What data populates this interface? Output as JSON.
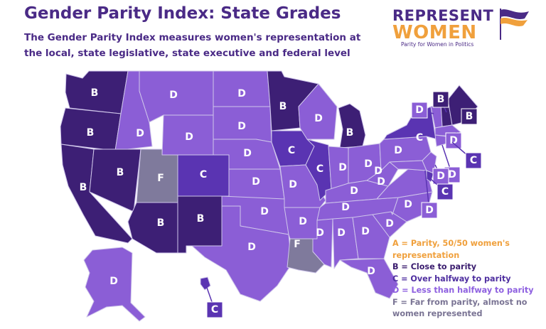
{
  "title": "Gender Parity Index: State Grades",
  "subtitle": "The Gender Parity Index measures women's representation at the local, state legislative, state executive and federal level",
  "logo": {
    "line1": "REPRESENT",
    "line2": "WOMEN",
    "tagline": "Parity for Women in Politics"
  },
  "colors": {
    "A": "#f0a03c",
    "B": "#3d1f75",
    "C": "#5a34b2",
    "D": "#8b5ed6",
    "F": "#7f7a9c",
    "border": "#cfc6ea",
    "box_stroke": "#ffffff"
  },
  "legend": [
    {
      "grade": "A",
      "text": "A = Parity, 50/50 women's representation"
    },
    {
      "grade": "B",
      "text": "B = Close to parity"
    },
    {
      "grade": "C",
      "text": "C = Over halfway to parity"
    },
    {
      "grade": "D",
      "text": "D = Less than halfway to parity"
    },
    {
      "grade": "F",
      "text": "F = Far from parity, almost no women represented"
    }
  ],
  "states": [
    {
      "state": "WA",
      "grade": "B"
    },
    {
      "state": "OR",
      "grade": "B"
    },
    {
      "state": "CA",
      "grade": "B"
    },
    {
      "state": "ID",
      "grade": "D"
    },
    {
      "state": "NV",
      "grade": "B"
    },
    {
      "state": "MT",
      "grade": "D"
    },
    {
      "state": "WY",
      "grade": "D"
    },
    {
      "state": "UT",
      "grade": "F"
    },
    {
      "state": "AZ",
      "grade": "B"
    },
    {
      "state": "CO",
      "grade": "C"
    },
    {
      "state": "NM",
      "grade": "B"
    },
    {
      "state": "ND",
      "grade": "D"
    },
    {
      "state": "SD",
      "grade": "D"
    },
    {
      "state": "NE",
      "grade": "D"
    },
    {
      "state": "KS",
      "grade": "D"
    },
    {
      "state": "OK",
      "grade": "D"
    },
    {
      "state": "TX",
      "grade": "D"
    },
    {
      "state": "MN",
      "grade": "B"
    },
    {
      "state": "IA",
      "grade": "C"
    },
    {
      "state": "MO",
      "grade": "D"
    },
    {
      "state": "AR",
      "grade": "D"
    },
    {
      "state": "LA",
      "grade": "F"
    },
    {
      "state": "WI",
      "grade": "D"
    },
    {
      "state": "IL",
      "grade": "C"
    },
    {
      "state": "MI",
      "grade": "B"
    },
    {
      "state": "IN",
      "grade": "D"
    },
    {
      "state": "OH",
      "grade": "D"
    },
    {
      "state": "KY",
      "grade": "D"
    },
    {
      "state": "TN",
      "grade": "D"
    },
    {
      "state": "MS",
      "grade": "D"
    },
    {
      "state": "AL",
      "grade": "D"
    },
    {
      "state": "GA",
      "grade": "D"
    },
    {
      "state": "FL",
      "grade": "D"
    },
    {
      "state": "SC",
      "grade": "D"
    },
    {
      "state": "NC",
      "grade": "D"
    },
    {
      "state": "VA",
      "grade": "D"
    },
    {
      "state": "WV",
      "grade": "D"
    },
    {
      "state": "PA",
      "grade": "D"
    },
    {
      "state": "NY",
      "grade": "C"
    },
    {
      "state": "ME",
      "grade": "B"
    },
    {
      "state": "VT",
      "grade": "D"
    },
    {
      "state": "NH",
      "grade": "B"
    },
    {
      "state": "MA",
      "grade": "D"
    },
    {
      "state": "RI",
      "grade": "C"
    },
    {
      "state": "CT",
      "grade": "D"
    },
    {
      "state": "NJ",
      "grade": "D"
    },
    {
      "state": "DE",
      "grade": "C"
    },
    {
      "state": "MD",
      "grade": "D"
    },
    {
      "state": "AK",
      "grade": "D"
    },
    {
      "state": "HI",
      "grade": "C"
    }
  ]
}
